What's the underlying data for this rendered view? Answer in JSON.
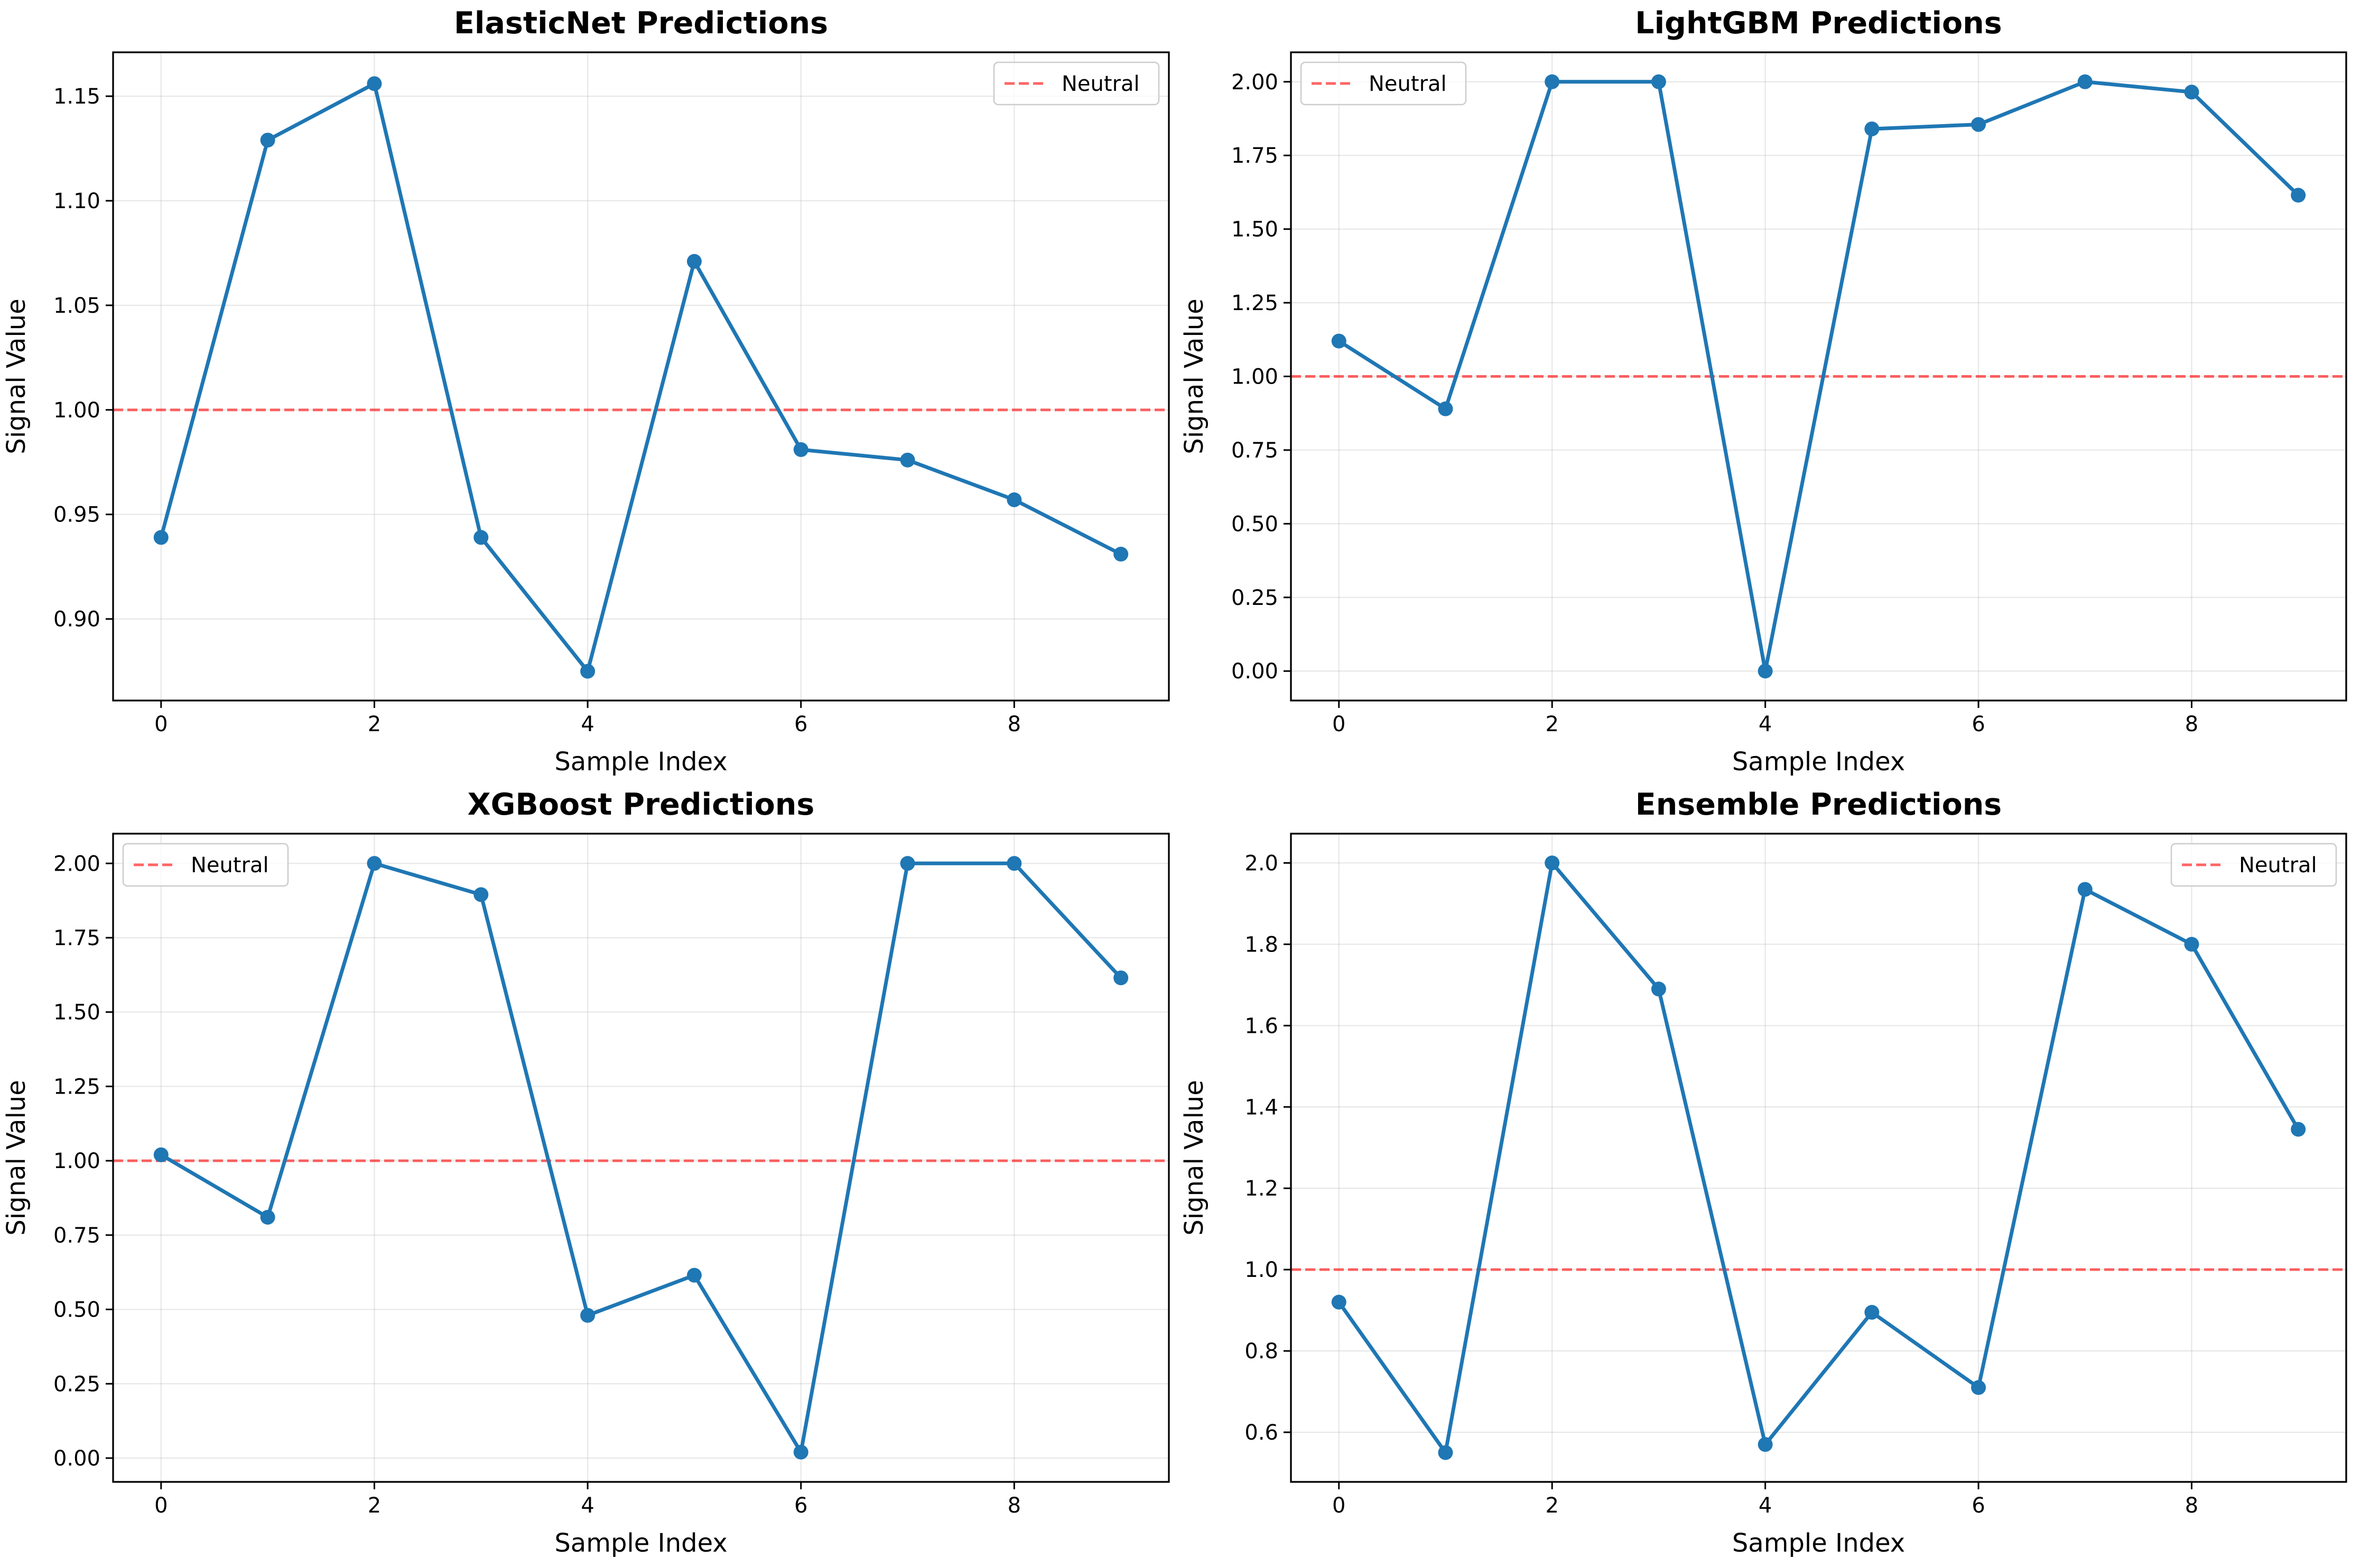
{
  "colors": {
    "series": "#1f77b4",
    "neutral": "#ff0000",
    "grid": "#b0b0b0",
    "axes": "#000000"
  },
  "chart_data": [
    {
      "type": "line",
      "title": "ElasticNet Predictions",
      "xlabel": "Sample Index",
      "ylabel": "Signal Value",
      "x": [
        0,
        1,
        2,
        3,
        4,
        5,
        6,
        7,
        8,
        9
      ],
      "series": [
        {
          "values": [
            0.939,
            1.129,
            1.156,
            0.939,
            0.875,
            1.071,
            0.981,
            0.976,
            0.957,
            0.931
          ]
        }
      ],
      "reference_line": {
        "name": "Neutral",
        "y": 1.0,
        "style": "dashed"
      },
      "xlim": [
        -0.45,
        9.45
      ],
      "ylim": [
        0.861,
        1.171
      ],
      "xticks": [
        0,
        2,
        4,
        6,
        8
      ],
      "yticks": [
        0.9,
        0.95,
        1.0,
        1.05,
        1.1,
        1.15
      ],
      "ytick_labels": [
        "0.90",
        "0.95",
        "1.00",
        "1.05",
        "1.10",
        "1.15"
      ],
      "grid": true,
      "legend_position": "upper-right"
    },
    {
      "type": "line",
      "title": "LightGBM Predictions",
      "xlabel": "Sample Index",
      "ylabel": "Signal Value",
      "x": [
        0,
        1,
        2,
        3,
        4,
        5,
        6,
        7,
        8,
        9
      ],
      "series": [
        {
          "values": [
            1.12,
            0.89,
            2.0,
            2.0,
            0.0,
            1.84,
            1.855,
            2.0,
            1.965,
            1.615
          ]
        }
      ],
      "reference_line": {
        "name": "Neutral",
        "y": 1.0,
        "style": "dashed"
      },
      "xlim": [
        -0.45,
        9.45
      ],
      "ylim": [
        -0.1,
        2.1
      ],
      "xticks": [
        0,
        2,
        4,
        6,
        8
      ],
      "yticks": [
        0.0,
        0.25,
        0.5,
        0.75,
        1.0,
        1.25,
        1.5,
        1.75,
        2.0
      ],
      "ytick_labels": [
        "0.00",
        "0.25",
        "0.50",
        "0.75",
        "1.00",
        "1.25",
        "1.50",
        "1.75",
        "2.00"
      ],
      "grid": true,
      "legend_position": "upper-left"
    },
    {
      "type": "line",
      "title": "XGBoost Predictions",
      "xlabel": "Sample Index",
      "ylabel": "Signal Value",
      "x": [
        0,
        1,
        2,
        3,
        4,
        5,
        6,
        7,
        8,
        9
      ],
      "series": [
        {
          "values": [
            1.02,
            0.81,
            2.0,
            1.895,
            0.48,
            0.615,
            0.02,
            2.0,
            2.0,
            1.615
          ]
        }
      ],
      "reference_line": {
        "name": "Neutral",
        "y": 1.0,
        "style": "dashed"
      },
      "xlim": [
        -0.45,
        9.45
      ],
      "ylim": [
        -0.08,
        2.1
      ],
      "xticks": [
        0,
        2,
        4,
        6,
        8
      ],
      "yticks": [
        0.0,
        0.25,
        0.5,
        0.75,
        1.0,
        1.25,
        1.5,
        1.75,
        2.0
      ],
      "ytick_labels": [
        "0.00",
        "0.25",
        "0.50",
        "0.75",
        "1.00",
        "1.25",
        "1.50",
        "1.75",
        "2.00"
      ],
      "grid": true,
      "legend_position": "upper-left"
    },
    {
      "type": "line",
      "title": "Ensemble Predictions",
      "xlabel": "Sample Index",
      "ylabel": "Signal Value",
      "x": [
        0,
        1,
        2,
        3,
        4,
        5,
        6,
        7,
        8,
        9
      ],
      "series": [
        {
          "values": [
            0.92,
            0.55,
            2.0,
            1.69,
            0.57,
            0.895,
            0.71,
            1.935,
            1.8,
            1.345
          ]
        }
      ],
      "reference_line": {
        "name": "Neutral",
        "y": 1.0,
        "style": "dashed"
      },
      "xlim": [
        -0.45,
        9.45
      ],
      "ylim": [
        0.478,
        2.072
      ],
      "xticks": [
        0,
        2,
        4,
        6,
        8
      ],
      "yticks": [
        0.6,
        0.8,
        1.0,
        1.2,
        1.4,
        1.6,
        1.8,
        2.0
      ],
      "ytick_labels": [
        "0.6",
        "0.8",
        "1.0",
        "1.2",
        "1.4",
        "1.6",
        "1.8",
        "2.0"
      ],
      "grid": true,
      "legend_position": "upper-right"
    }
  ]
}
